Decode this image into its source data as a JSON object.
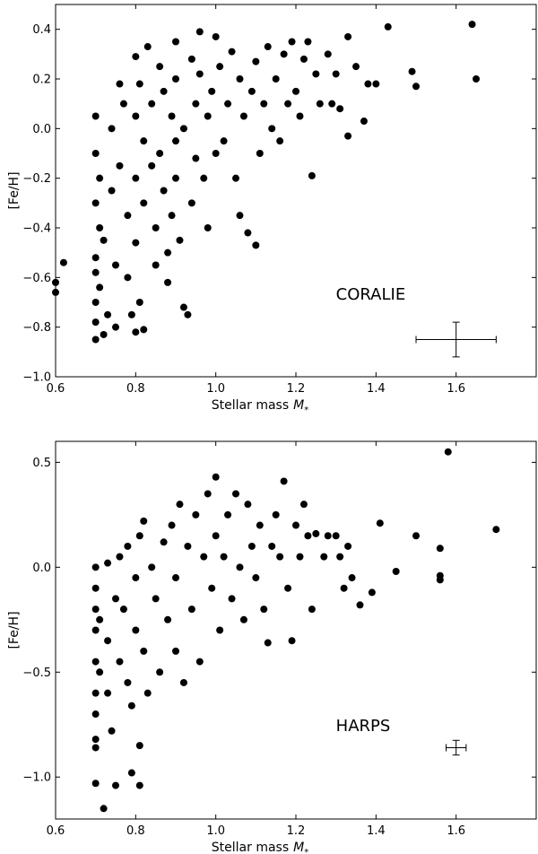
{
  "chart_data": [
    {
      "type": "scatter",
      "label": "CORALIE",
      "xlabel": "Stellar mass",
      "xlabel_symbol": "M",
      "xlabel_sub": "*",
      "ylabel": "[Fe/H]",
      "xlim": [
        0.6,
        1.8
      ],
      "ylim": [
        -1.0,
        0.5
      ],
      "xticks": [
        0.6,
        0.8,
        1.0,
        1.2,
        1.4,
        1.6
      ],
      "xtick_labels": [
        "0.6",
        "0.8",
        "1.0",
        "1.2",
        "1.4",
        "1.6"
      ],
      "yticks": [
        -1.0,
        -0.8,
        -0.6,
        -0.4,
        -0.2,
        0.0,
        0.2,
        0.4
      ],
      "ytick_labels": [
        "−1.0",
        "−0.8",
        "−0.6",
        "−0.4",
        "−0.2",
        "0.0",
        "0.2",
        "0.4"
      ],
      "grid": false,
      "error_bar": {
        "x": 1.6,
        "y": -0.85,
        "xerr": 0.1,
        "yerr": 0.07
      },
      "points": [
        [
          0.6,
          -0.62
        ],
        [
          0.6,
          -0.66
        ],
        [
          0.62,
          -0.54
        ],
        [
          0.7,
          0.05
        ],
        [
          0.7,
          -0.1
        ],
        [
          0.7,
          -0.3
        ],
        [
          0.7,
          -0.52
        ],
        [
          0.7,
          -0.58
        ],
        [
          0.7,
          -0.7
        ],
        [
          0.7,
          -0.78
        ],
        [
          0.7,
          -0.85
        ],
        [
          0.71,
          -0.2
        ],
        [
          0.71,
          -0.4
        ],
        [
          0.71,
          -0.64
        ],
        [
          0.72,
          -0.45
        ],
        [
          0.72,
          -0.83
        ],
        [
          0.73,
          -0.75
        ],
        [
          0.74,
          0.0
        ],
        [
          0.74,
          -0.25
        ],
        [
          0.75,
          -0.55
        ],
        [
          0.75,
          -0.8
        ],
        [
          0.76,
          0.18
        ],
        [
          0.76,
          -0.15
        ],
        [
          0.77,
          0.1
        ],
        [
          0.78,
          -0.35
        ],
        [
          0.78,
          -0.6
        ],
        [
          0.79,
          -0.75
        ],
        [
          0.8,
          0.29
        ],
        [
          0.8,
          0.05
        ],
        [
          0.8,
          -0.2
        ],
        [
          0.8,
          -0.46
        ],
        [
          0.8,
          -0.82
        ],
        [
          0.81,
          0.18
        ],
        [
          0.81,
          -0.7
        ],
        [
          0.82,
          -0.05
        ],
        [
          0.82,
          -0.3
        ],
        [
          0.82,
          -0.81
        ],
        [
          0.83,
          0.33
        ],
        [
          0.84,
          0.1
        ],
        [
          0.84,
          -0.15
        ],
        [
          0.85,
          -0.4
        ],
        [
          0.85,
          -0.55
        ],
        [
          0.86,
          0.25
        ],
        [
          0.86,
          -0.1
        ],
        [
          0.87,
          0.15
        ],
        [
          0.87,
          -0.25
        ],
        [
          0.88,
          -0.5
        ],
        [
          0.88,
          -0.62
        ],
        [
          0.89,
          0.05
        ],
        [
          0.89,
          -0.35
        ],
        [
          0.9,
          0.35
        ],
        [
          0.9,
          0.2
        ],
        [
          0.9,
          -0.05
        ],
        [
          0.9,
          -0.2
        ],
        [
          0.91,
          -0.45
        ],
        [
          0.92,
          0.0
        ],
        [
          0.92,
          -0.72
        ],
        [
          0.93,
          -0.75
        ],
        [
          0.94,
          0.28
        ],
        [
          0.94,
          -0.3
        ],
        [
          0.95,
          0.1
        ],
        [
          0.95,
          -0.12
        ],
        [
          0.96,
          0.39
        ],
        [
          0.96,
          0.22
        ],
        [
          0.97,
          -0.2
        ],
        [
          0.98,
          0.05
        ],
        [
          0.98,
          -0.4
        ],
        [
          0.99,
          0.15
        ],
        [
          1.0,
          0.37
        ],
        [
          1.0,
          -0.1
        ],
        [
          1.01,
          0.25
        ],
        [
          1.02,
          -0.05
        ],
        [
          1.03,
          0.1
        ],
        [
          1.04,
          0.31
        ],
        [
          1.05,
          -0.2
        ],
        [
          1.06,
          0.2
        ],
        [
          1.06,
          -0.35
        ],
        [
          1.07,
          0.05
        ],
        [
          1.08,
          -0.42
        ],
        [
          1.09,
          0.15
        ],
        [
          1.1,
          -0.47
        ],
        [
          1.1,
          0.27
        ],
        [
          1.11,
          -0.1
        ],
        [
          1.12,
          0.1
        ],
        [
          1.13,
          0.33
        ],
        [
          1.14,
          0.0
        ],
        [
          1.15,
          0.2
        ],
        [
          1.16,
          -0.05
        ],
        [
          1.17,
          0.3
        ],
        [
          1.18,
          0.1
        ],
        [
          1.19,
          0.35
        ],
        [
          1.2,
          0.15
        ],
        [
          1.21,
          0.05
        ],
        [
          1.22,
          0.28
        ],
        [
          1.23,
          0.35
        ],
        [
          1.24,
          -0.19
        ],
        [
          1.25,
          0.22
        ],
        [
          1.26,
          0.1
        ],
        [
          1.28,
          0.3
        ],
        [
          1.29,
          0.1
        ],
        [
          1.3,
          0.22
        ],
        [
          1.31,
          0.08
        ],
        [
          1.33,
          0.37
        ],
        [
          1.33,
          -0.03
        ],
        [
          1.35,
          0.25
        ],
        [
          1.37,
          0.03
        ],
        [
          1.38,
          0.18
        ],
        [
          1.4,
          0.18
        ],
        [
          1.43,
          0.41
        ],
        [
          1.49,
          0.23
        ],
        [
          1.5,
          0.17
        ],
        [
          1.64,
          0.42
        ],
        [
          1.65,
          0.2
        ]
      ]
    },
    {
      "type": "scatter",
      "label": "HARPS",
      "xlabel": "Stellar mass",
      "xlabel_symbol": "M",
      "xlabel_sub": "*",
      "ylabel": "[Fe/H]",
      "xlim": [
        0.6,
        1.8
      ],
      "ylim": [
        -1.2,
        0.6
      ],
      "xticks": [
        0.6,
        0.8,
        1.0,
        1.2,
        1.4,
        1.6
      ],
      "xtick_labels": [
        "0.6",
        "0.8",
        "1.0",
        "1.2",
        "1.4",
        "1.6"
      ],
      "yticks": [
        -1.0,
        -0.5,
        0.0,
        0.5
      ],
      "ytick_labels": [
        "−1.0",
        "−0.5",
        "0.0",
        "0.5"
      ],
      "grid": false,
      "error_bar": {
        "x": 1.6,
        "y": -0.86,
        "xerr": 0.025,
        "yerr": 0.035
      },
      "points": [
        [
          0.7,
          0.0
        ],
        [
          0.7,
          -0.1
        ],
        [
          0.7,
          -0.2
        ],
        [
          0.7,
          -0.3
        ],
        [
          0.7,
          -0.45
        ],
        [
          0.7,
          -0.6
        ],
        [
          0.7,
          -0.7
        ],
        [
          0.7,
          -0.82
        ],
        [
          0.7,
          -0.86
        ],
        [
          0.7,
          -1.03
        ],
        [
          0.71,
          -0.25
        ],
        [
          0.71,
          -0.5
        ],
        [
          0.72,
          -1.15
        ],
        [
          0.73,
          0.02
        ],
        [
          0.73,
          -0.35
        ],
        [
          0.73,
          -0.6
        ],
        [
          0.74,
          -0.78
        ],
        [
          0.75,
          -1.04
        ],
        [
          0.75,
          -0.15
        ],
        [
          0.76,
          0.05
        ],
        [
          0.76,
          -0.45
        ],
        [
          0.77,
          -0.2
        ],
        [
          0.78,
          0.1
        ],
        [
          0.78,
          -0.55
        ],
        [
          0.79,
          -0.66
        ],
        [
          0.79,
          -0.98
        ],
        [
          0.8,
          -0.05
        ],
        [
          0.8,
          -0.3
        ],
        [
          0.81,
          -0.85
        ],
        [
          0.81,
          0.15
        ],
        [
          0.81,
          -1.04
        ],
        [
          0.82,
          0.22
        ],
        [
          0.82,
          -0.4
        ],
        [
          0.83,
          -0.6
        ],
        [
          0.84,
          0.0
        ],
        [
          0.85,
          -0.15
        ],
        [
          0.86,
          -0.5
        ],
        [
          0.87,
          0.12
        ],
        [
          0.88,
          -0.25
        ],
        [
          0.89,
          0.2
        ],
        [
          0.9,
          -0.05
        ],
        [
          0.9,
          -0.4
        ],
        [
          0.91,
          0.3
        ],
        [
          0.92,
          -0.55
        ],
        [
          0.93,
          0.1
        ],
        [
          0.94,
          -0.2
        ],
        [
          0.95,
          0.25
        ],
        [
          0.96,
          -0.45
        ],
        [
          0.97,
          0.05
        ],
        [
          0.98,
          0.35
        ],
        [
          0.99,
          -0.1
        ],
        [
          1.0,
          0.43
        ],
        [
          1.0,
          0.15
        ],
        [
          1.01,
          -0.3
        ],
        [
          1.02,
          0.05
        ],
        [
          1.03,
          0.25
        ],
        [
          1.04,
          -0.15
        ],
        [
          1.05,
          0.35
        ],
        [
          1.06,
          0.0
        ],
        [
          1.07,
          -0.25
        ],
        [
          1.08,
          0.3
        ],
        [
          1.09,
          0.1
        ],
        [
          1.1,
          -0.05
        ],
        [
          1.11,
          0.2
        ],
        [
          1.12,
          -0.2
        ],
        [
          1.13,
          -0.36
        ],
        [
          1.14,
          0.1
        ],
        [
          1.15,
          0.25
        ],
        [
          1.16,
          0.05
        ],
        [
          1.17,
          0.41
        ],
        [
          1.18,
          -0.1
        ],
        [
          1.19,
          -0.35
        ],
        [
          1.2,
          0.2
        ],
        [
          1.21,
          0.05
        ],
        [
          1.22,
          0.3
        ],
        [
          1.23,
          0.15
        ],
        [
          1.24,
          -0.2
        ],
        [
          1.25,
          0.16
        ],
        [
          1.27,
          0.05
        ],
        [
          1.28,
          0.15
        ],
        [
          1.3,
          0.15
        ],
        [
          1.31,
          0.05
        ],
        [
          1.32,
          -0.1
        ],
        [
          1.33,
          0.1
        ],
        [
          1.34,
          -0.05
        ],
        [
          1.36,
          -0.18
        ],
        [
          1.39,
          -0.12
        ],
        [
          1.41,
          0.21
        ],
        [
          1.45,
          -0.02
        ],
        [
          1.5,
          0.15
        ],
        [
          1.56,
          0.09
        ],
        [
          1.56,
          -0.04
        ],
        [
          1.56,
          -0.06
        ],
        [
          1.58,
          0.55
        ],
        [
          1.7,
          0.18
        ]
      ]
    }
  ]
}
